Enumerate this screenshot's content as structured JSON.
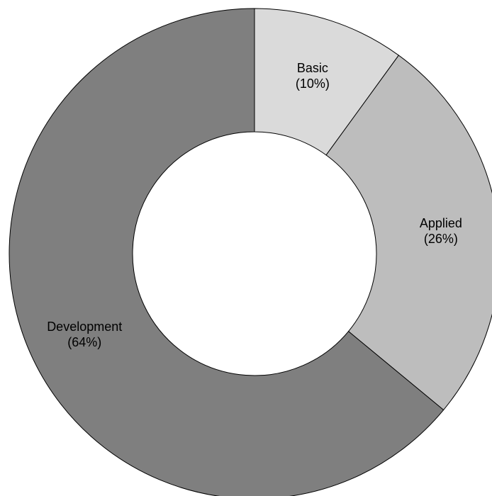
{
  "chart_data": {
    "type": "pie",
    "variant": "donut",
    "title": "",
    "slices": [
      {
        "name": "Basic",
        "value": 10,
        "label": "Basic",
        "percent_label": "(10%)",
        "color": "#dadada"
      },
      {
        "name": "Applied",
        "value": 26,
        "label": "Applied",
        "percent_label": "(26%)",
        "color": "#bdbdbd"
      },
      {
        "name": "Development",
        "value": 64,
        "label": "Development",
        "percent_label": "(64%)",
        "color": "#7f7f7f"
      }
    ],
    "start": "12 o'clock",
    "direction": "clockwise",
    "legend": "none"
  }
}
